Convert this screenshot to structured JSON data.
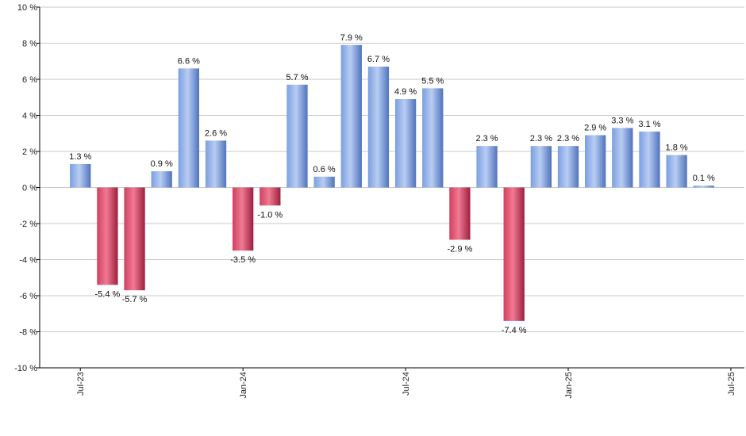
{
  "chart_data": {
    "type": "bar",
    "unit_suffix": " %",
    "ylim": [
      -10,
      10
    ],
    "yticks": [
      -10,
      -8,
      -6,
      -4,
      -2,
      0,
      2,
      4,
      6,
      8,
      10
    ],
    "ytick_labels": [
      "-10 %",
      "-8 %",
      "-6 %",
      "-4 %",
      "-2 %",
      "0 %",
      "2 %",
      "4 %",
      "6 %",
      "8 %",
      "10 %"
    ],
    "grid": true,
    "values": [
      1.3,
      -5.4,
      -5.7,
      0.9,
      6.6,
      2.6,
      -3.5,
      -1.0,
      5.7,
      0.6,
      7.9,
      6.7,
      4.9,
      5.5,
      -2.9,
      2.3,
      -7.4,
      2.3,
      2.3,
      2.9,
      3.3,
      3.1,
      1.8,
      0.1
    ],
    "value_labels": [
      "1.3 %",
      "-5.4 %",
      "-5.7 %",
      "0.9 %",
      "6.6 %",
      "2.6 %",
      "-3.5 %",
      "-1.0 %",
      "5.7 %",
      "0.6 %",
      "7.9 %",
      "6.7 %",
      "4.9 %",
      "5.5 %",
      "-2.9 %",
      "2.3 %",
      "-7.4 %",
      "2.3 %",
      "2.3 %",
      "2.9 %",
      "3.3 %",
      "3.1 %",
      "1.8 %",
      "0.1 %"
    ],
    "x_tick_labels": [
      {
        "label": "Jul-23",
        "index": 0
      },
      {
        "label": "Jan-24",
        "index": 6
      },
      {
        "label": "Jul-24",
        "index": 12
      },
      {
        "label": "Jan-25",
        "index": 18
      },
      {
        "label": "Jul-25",
        "index": 24
      }
    ],
    "colors": {
      "positive": "#7a9fe0",
      "positive_light": "#b9cdf3",
      "positive_dark": "#4f73bd",
      "negative": "#d1405f",
      "negative_light": "#f07a94",
      "negative_dark": "#9c1f3c",
      "grid": "#c8c8c8",
      "axis": "#000000"
    }
  }
}
